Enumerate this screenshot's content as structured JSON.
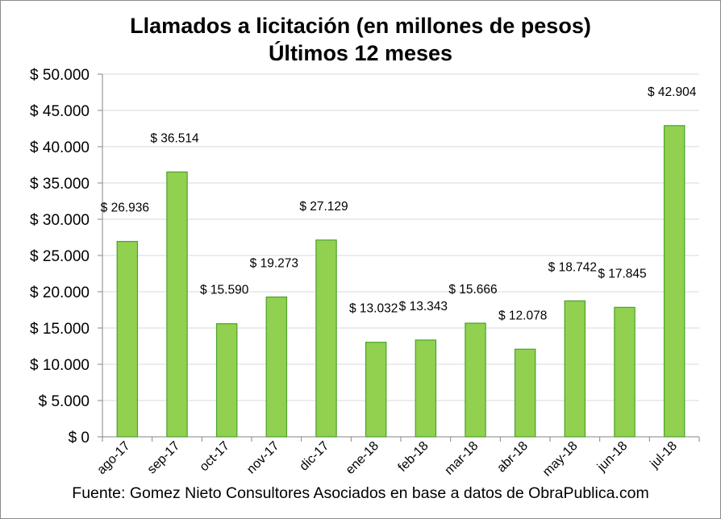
{
  "chart_data": {
    "type": "bar",
    "title": "Llamados a licitación (en millones de pesos)",
    "subtitle": "Últimos 12 meses",
    "xlabel": "",
    "ylabel": "",
    "categories": [
      "ago-17",
      "sep-17",
      "oct-17",
      "nov-17",
      "dic-17",
      "ene-18",
      "feb-18",
      "mar-18",
      "abr-18",
      "may-18",
      "jun-18",
      "jul-18"
    ],
    "values": [
      26936,
      36514,
      15590,
      19273,
      27129,
      13032,
      13343,
      15666,
      12078,
      18742,
      17845,
      42904
    ],
    "data_labels": [
      "$ 26.936",
      "$ 36.514",
      "$ 15.590",
      "$ 19.273",
      "$ 27.129",
      "$ 13.032",
      "$ 13.343",
      "$ 15.666",
      "$ 12.078",
      "$ 18.742",
      "$ 17.845",
      "$ 42.904"
    ],
    "ylim": [
      0,
      50000
    ],
    "yticks": [
      0,
      5000,
      10000,
      15000,
      20000,
      25000,
      30000,
      35000,
      40000,
      45000,
      50000
    ],
    "ytick_labels": [
      "$ 0",
      "$ 5.000",
      "$ 10.000",
      "$ 15.000",
      "$ 20.000",
      "$ 25.000",
      "$ 30.000",
      "$ 35.000",
      "$ 40.000",
      "$ 45.000",
      "$ 50.000"
    ],
    "grid": true,
    "legend": "none",
    "bar_fill": "#92d050",
    "bar_stroke": "#4aa32b",
    "grid_color": "#d9d9d9"
  },
  "footer": {
    "source": "Fuente: Gomez Nieto Consultores Asociados en base a datos de ObraPublica.com"
  }
}
